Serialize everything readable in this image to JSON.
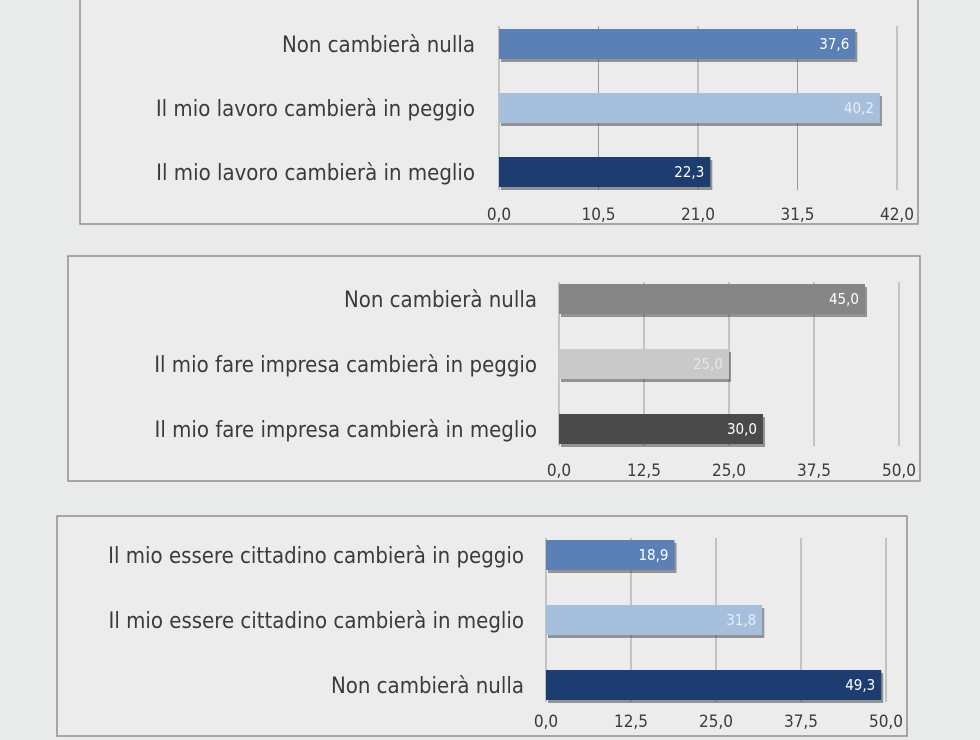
{
  "chart_data": [
    {
      "type": "bar",
      "orientation": "horizontal",
      "categories": [
        "Non cambierà nulla",
        "Il mio lavoro cambierà in peggio",
        "Il mio lavoro cambierà in meglio"
      ],
      "values": [
        37.6,
        40.2,
        22.3
      ],
      "value_labels": [
        "37,6",
        "40,2",
        "22,3"
      ],
      "xlim": [
        0,
        42
      ],
      "ticks": [
        "0,0",
        "10,5",
        "21,0",
        "31,5",
        "42,0"
      ],
      "colors": [
        "#5a80b5",
        "#a5bfdc",
        "#1d3c70"
      ],
      "label_colors": [
        "#ffffff",
        "#e8eef6",
        "#ffffff"
      ],
      "grid": true
    },
    {
      "type": "bar",
      "orientation": "horizontal",
      "categories": [
        "Non cambierà nulla",
        "Il mio fare impresa cambierà in peggio",
        "Il mio fare impresa cambierà in meglio"
      ],
      "values": [
        45.0,
        25.0,
        30.0
      ],
      "value_labels": [
        "45,0",
        "25,0",
        "30,0"
      ],
      "xlim": [
        0,
        50
      ],
      "ticks": [
        "0,0",
        "12,5",
        "25,0",
        "37,5",
        "50,0"
      ],
      "colors": [
        "#868686",
        "#c9c9c9",
        "#4a4a4a"
      ],
      "label_colors": [
        "#ffffff",
        "#e6e6e6",
        "#ffffff"
      ],
      "grid": true
    },
    {
      "type": "bar",
      "orientation": "horizontal",
      "categories": [
        "Il mio essere cittadino cambierà in peggio",
        "Il mio essere cittadino cambierà in meglio",
        "Non cambierà nulla"
      ],
      "values": [
        18.9,
        31.8,
        49.3
      ],
      "value_labels": [
        "18,9",
        "31,8",
        "49,3"
      ],
      "xlim": [
        0,
        50
      ],
      "ticks": [
        "0,0",
        "12,5",
        "25,0",
        "37,5",
        "50,0"
      ],
      "colors": [
        "#5a80b5",
        "#a5bfdc",
        "#1d3c70"
      ],
      "label_colors": [
        "#ffffff",
        "#e8eef6",
        "#ffffff"
      ],
      "grid": true
    }
  ]
}
